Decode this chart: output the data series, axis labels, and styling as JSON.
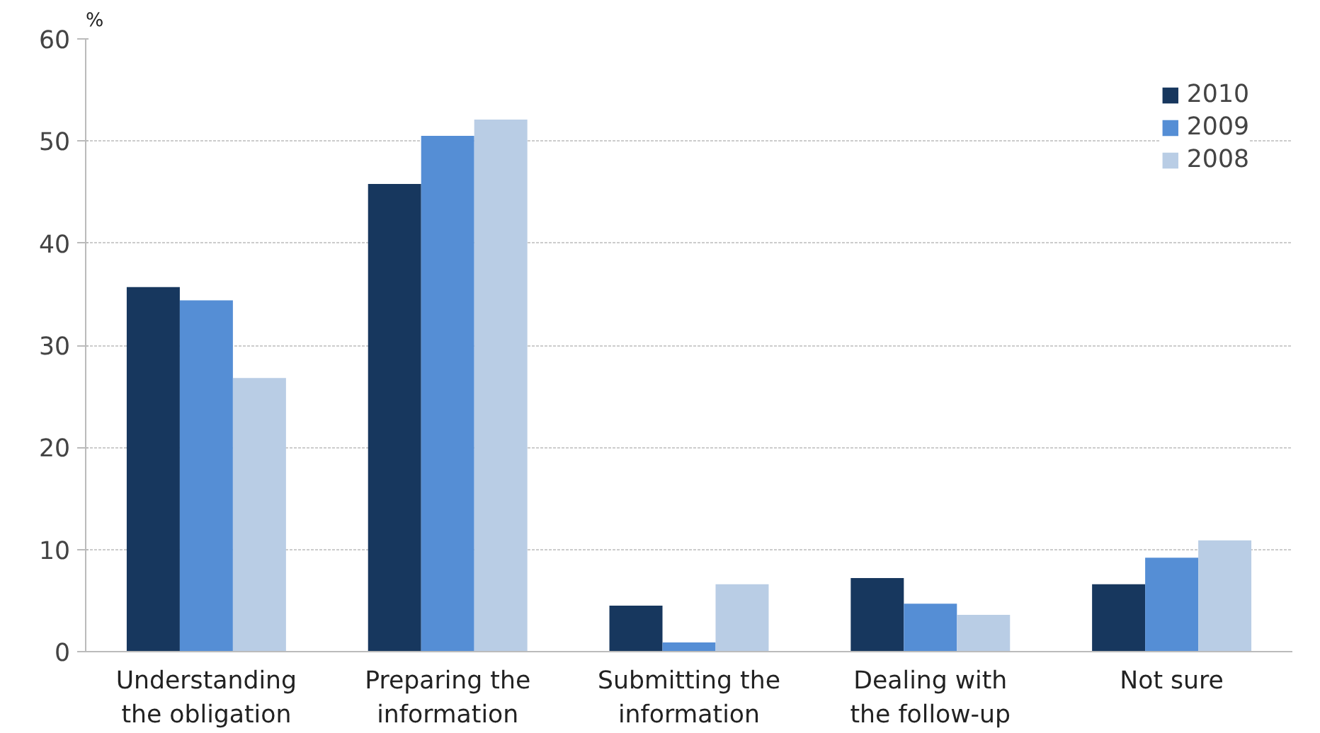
{
  "chart_data": {
    "type": "bar",
    "ylabel": "%",
    "categories": [
      "Understanding\nthe obligation",
      "Preparing the\ninformation",
      "Submitting the\ninformation",
      "Dealing with\nthe follow-up",
      "Not sure"
    ],
    "series": [
      {
        "name": "2010",
        "color": "#17375e",
        "values": [
          35.7,
          45.8,
          4.5,
          7.2,
          6.6
        ]
      },
      {
        "name": "2009",
        "color": "#558ed5",
        "values": [
          34.4,
          50.5,
          0.9,
          4.7,
          9.2
        ]
      },
      {
        "name": "2008",
        "color": "#b9cde5",
        "values": [
          26.8,
          52.1,
          6.6,
          3.6,
          10.9
        ]
      }
    ],
    "ylim": [
      0,
      60
    ],
    "yticks": [
      0,
      10,
      20,
      30,
      40,
      50,
      60
    ],
    "grid": "y",
    "legend": "top right"
  }
}
